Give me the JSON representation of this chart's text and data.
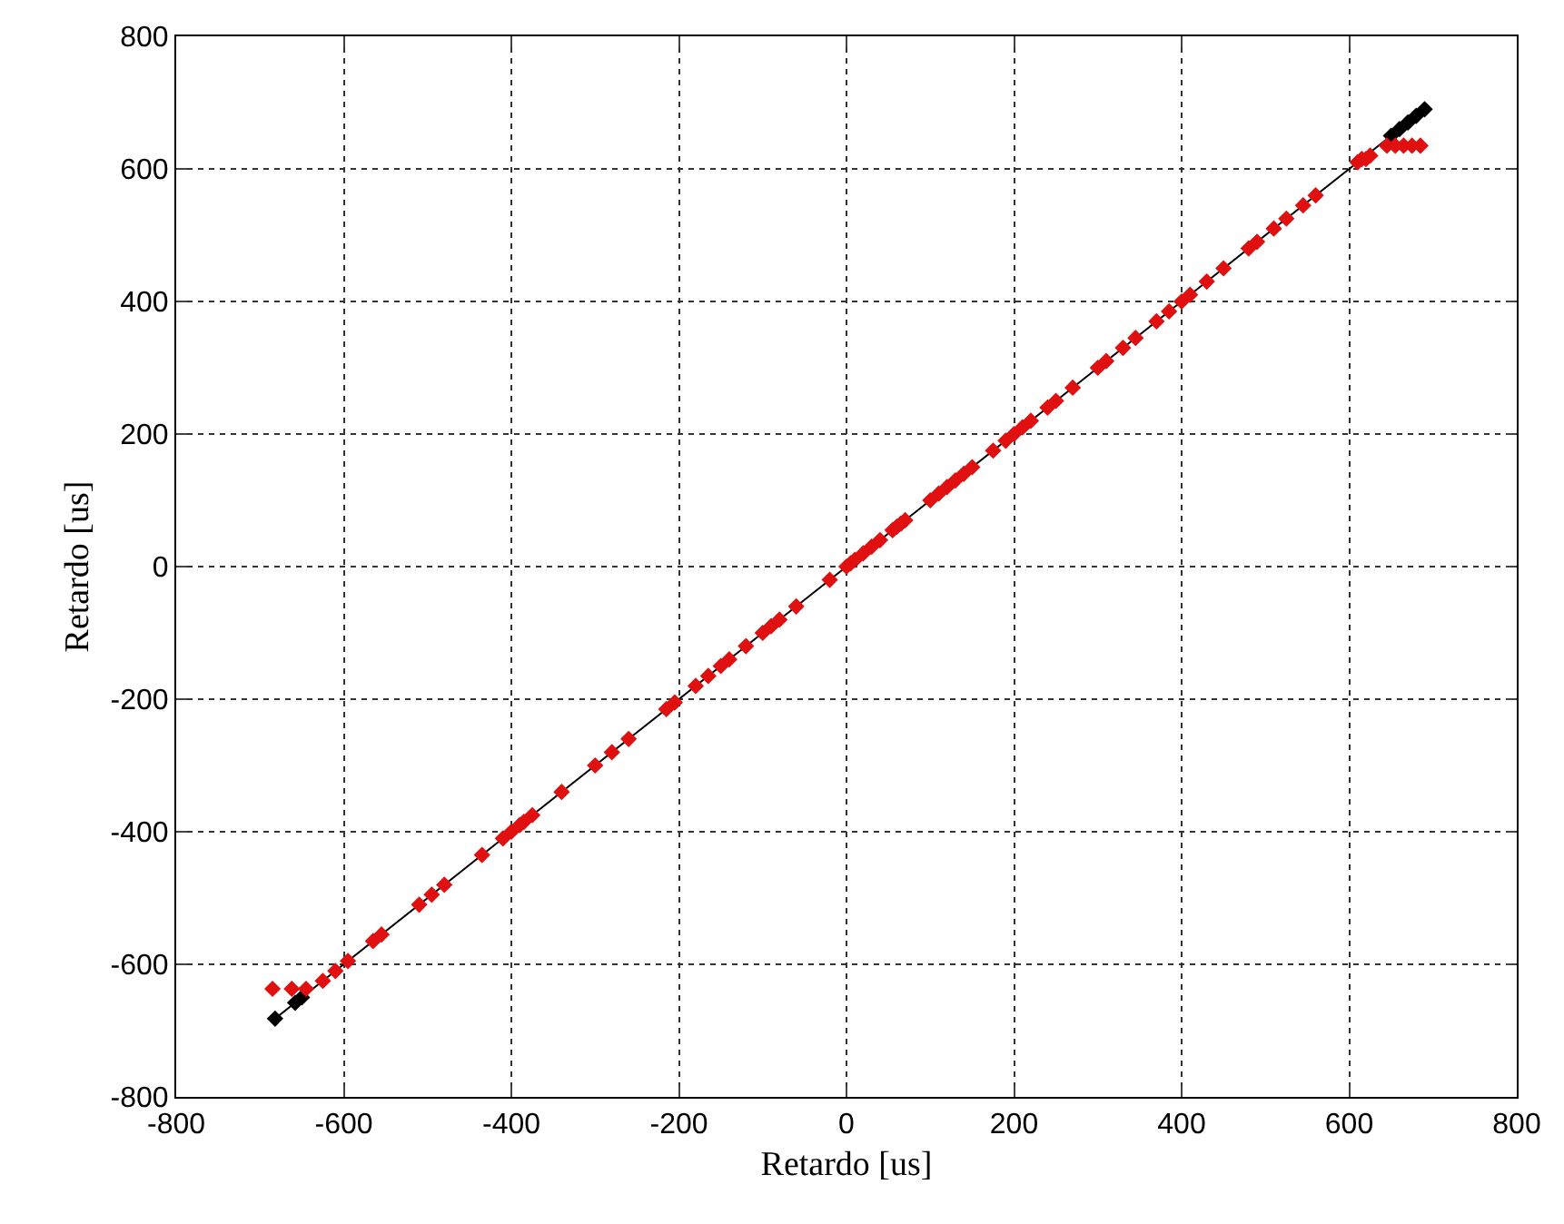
{
  "chart_data": {
    "type": "scatter",
    "xlabel": "Retardo [us]",
    "ylabel": "Retardo [us]",
    "xlim": [
      -800,
      800
    ],
    "ylim": [
      -800,
      800
    ],
    "xticks": [
      -800,
      -600,
      -400,
      -200,
      0,
      200,
      400,
      600,
      800
    ],
    "yticks": [
      -800,
      -600,
      -400,
      -200,
      0,
      200,
      400,
      600,
      800
    ],
    "grid": true,
    "marker": "diamond",
    "series": [
      {
        "type": "line",
        "color": "#000000",
        "line_style": "solid",
        "x": [
          -682,
          -658,
          -650,
          650,
          660,
          670,
          680,
          690
        ],
        "values": [
          -682,
          -658,
          -650,
          650,
          660,
          670,
          680,
          690
        ]
      },
      {
        "color": "#e01010",
        "x": [
          -685,
          -662,
          -645,
          -625,
          -610,
          -595,
          -565,
          -555,
          -510,
          -495,
          -480,
          -435,
          -410,
          -400,
          -390,
          -385,
          -375,
          -340,
          -300,
          -280,
          -260,
          -215,
          -205,
          -180,
          -165,
          -150,
          -140,
          -120,
          -100,
          -90,
          -80,
          -60,
          -20,
          0,
          5,
          10,
          20,
          30,
          40,
          55,
          60,
          65,
          70,
          100,
          110,
          120,
          130,
          140,
          150,
          175,
          190,
          200,
          210,
          220,
          240,
          250,
          270,
          300,
          310,
          330,
          345,
          370,
          385,
          400,
          410,
          430,
          450,
          480,
          490,
          510,
          525,
          545,
          560,
          610,
          615,
          620,
          625,
          645,
          655,
          665,
          675,
          685
        ],
        "values": [
          -637,
          -637,
          -637,
          -625,
          -610,
          -595,
          -565,
          -555,
          -510,
          -495,
          -480,
          -435,
          -410,
          -400,
          -390,
          -385,
          -375,
          -340,
          -300,
          -280,
          -260,
          -215,
          -205,
          -180,
          -165,
          -150,
          -140,
          -120,
          -100,
          -90,
          -80,
          -60,
          -20,
          0,
          5,
          10,
          20,
          30,
          40,
          55,
          60,
          65,
          70,
          100,
          110,
          120,
          130,
          140,
          150,
          175,
          190,
          200,
          210,
          220,
          240,
          250,
          270,
          300,
          310,
          330,
          345,
          370,
          385,
          400,
          410,
          430,
          450,
          480,
          490,
          510,
          525,
          545,
          560,
          610,
          615,
          615,
          620,
          635,
          635,
          635,
          635,
          635
        ]
      }
    ]
  }
}
